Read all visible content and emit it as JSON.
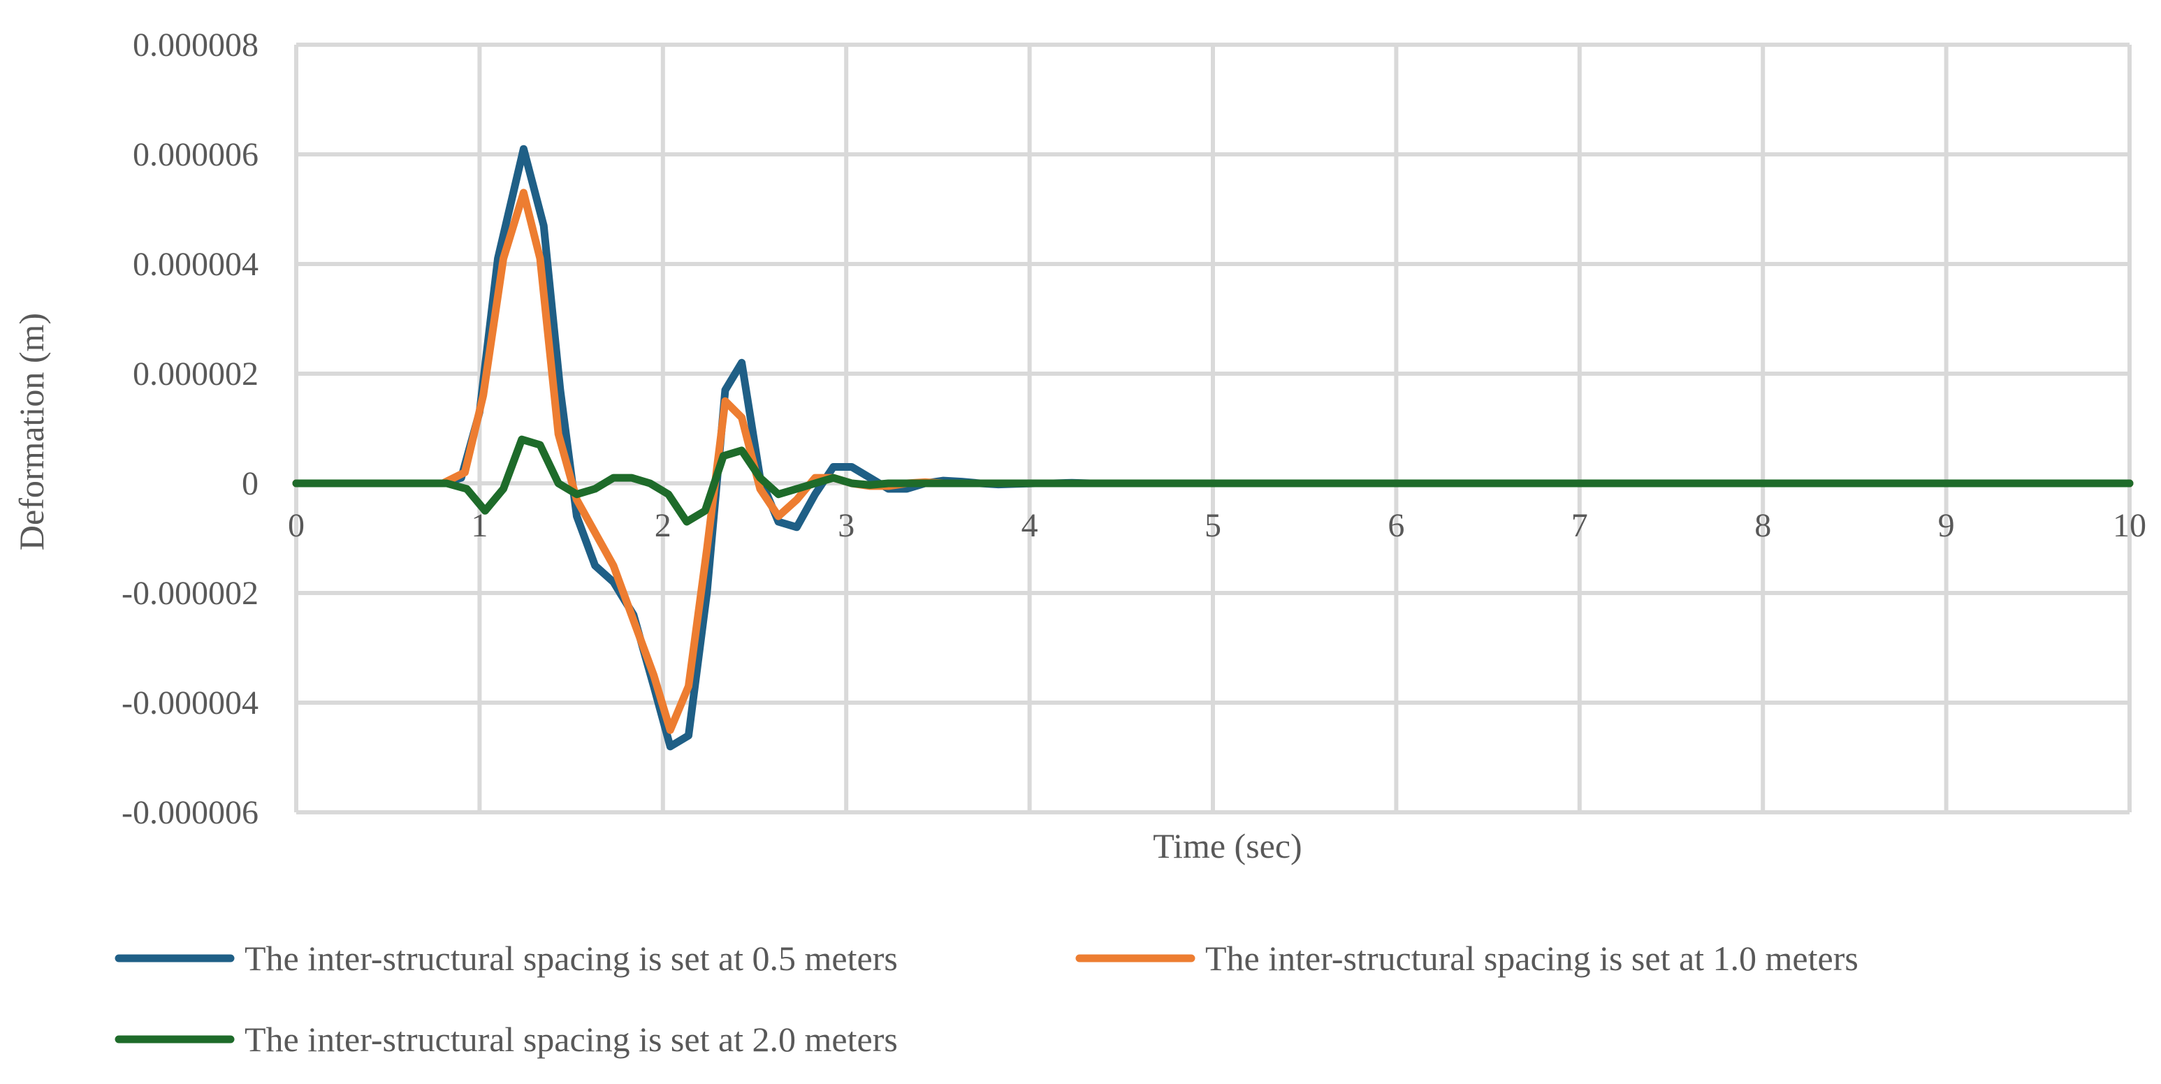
{
  "chart_data": {
    "type": "line",
    "title": "",
    "xlabel": "Time (sec)",
    "ylabel": "Deformation (m)",
    "xlim": [
      0,
      10
    ],
    "ylim": [
      -6e-06,
      8e-06
    ],
    "x_ticks": [
      0,
      1,
      2,
      3,
      4,
      5,
      6,
      7,
      8,
      9,
      10
    ],
    "x_tick_labels": [
      "0",
      "1",
      "2",
      "3",
      "4",
      "5",
      "6",
      "7",
      "8",
      "9",
      "10"
    ],
    "y_ticks": [
      8e-06,
      6e-06,
      4e-06,
      2e-06,
      0,
      -2e-06,
      -4e-06,
      -6e-06
    ],
    "y_tick_labels": [
      "0.000008",
      "0.000006",
      "0.000004",
      "0.000002",
      "0",
      "-0.000002",
      "-0.000004",
      "-0.000006"
    ],
    "grid": true,
    "legend_position": "bottom",
    "colors": {
      "grid": "#d9d9d9",
      "text": "#595959"
    },
    "series": [
      {
        "name": "The inter-structural spacing is set at 0.5 meters",
        "color": "#1f5f86",
        "points": [
          [
            0,
            0
          ],
          [
            0.8,
            0
          ],
          [
            0.9,
            1e-07
          ],
          [
            1.0,
            1.3e-06
          ],
          [
            1.1,
            4.1e-06
          ],
          [
            1.24,
            6.1e-06
          ],
          [
            1.35,
            4.7e-06
          ],
          [
            1.44,
            1.7e-06
          ],
          [
            1.53,
            -6e-07
          ],
          [
            1.63,
            -1.5e-06
          ],
          [
            1.73,
            -1.8e-06
          ],
          [
            1.84,
            -2.4e-06
          ],
          [
            1.95,
            -3.7e-06
          ],
          [
            2.04,
            -4.8e-06
          ],
          [
            2.14,
            -4.6e-06
          ],
          [
            2.24,
            -2e-06
          ],
          [
            2.34,
            1.7e-06
          ],
          [
            2.43,
            2.2e-06
          ],
          [
            2.53,
            1e-07
          ],
          [
            2.63,
            -7e-07
          ],
          [
            2.73,
            -8e-07
          ],
          [
            2.83,
            -2e-07
          ],
          [
            2.93,
            3e-07
          ],
          [
            3.03,
            3e-07
          ],
          [
            3.13,
            1e-07
          ],
          [
            3.23,
            -1e-07
          ],
          [
            3.33,
            -1e-07
          ],
          [
            3.43,
            0
          ],
          [
            3.53,
            5e-08
          ],
          [
            3.63,
            3e-08
          ],
          [
            3.73,
            0
          ],
          [
            3.83,
            -2e-08
          ],
          [
            3.93,
            -1e-08
          ],
          [
            4.03,
            0
          ],
          [
            4.13,
            0
          ],
          [
            4.23,
            1e-08
          ],
          [
            4.33,
            0
          ],
          [
            10,
            0
          ]
        ]
      },
      {
        "name": "The inter-structural spacing is set at 1.0 meters",
        "color": "#ed7d31",
        "points": [
          [
            0,
            0
          ],
          [
            0.8,
            0
          ],
          [
            0.92,
            2e-07
          ],
          [
            1.02,
            1.6e-06
          ],
          [
            1.13,
            4.1e-06
          ],
          [
            1.24,
            5.3e-06
          ],
          [
            1.33,
            4.1e-06
          ],
          [
            1.43,
            9e-07
          ],
          [
            1.53,
            -3e-07
          ],
          [
            1.63,
            -9e-07
          ],
          [
            1.73,
            -1.5e-06
          ],
          [
            1.84,
            -2.5e-06
          ],
          [
            1.95,
            -3.5e-06
          ],
          [
            2.04,
            -4.5e-06
          ],
          [
            2.14,
            -3.7e-06
          ],
          [
            2.24,
            -1.2e-06
          ],
          [
            2.34,
            1.5e-06
          ],
          [
            2.43,
            1.2e-06
          ],
          [
            2.53,
            -1e-07
          ],
          [
            2.63,
            -6e-07
          ],
          [
            2.73,
            -3e-07
          ],
          [
            2.83,
            1e-07
          ],
          [
            2.93,
            1e-07
          ],
          [
            3.03,
            0
          ],
          [
            3.13,
            -5e-08
          ],
          [
            3.23,
            -5e-08
          ],
          [
            3.33,
            0
          ],
          [
            3.43,
            2e-08
          ],
          [
            3.53,
            0
          ],
          [
            10,
            0
          ]
        ]
      },
      {
        "name": "The inter-structural spacing is set at 2.0 meters",
        "color": "#1e6b2a",
        "points": [
          [
            0,
            0
          ],
          [
            0.82,
            0
          ],
          [
            0.93,
            -1e-07
          ],
          [
            1.03,
            -5e-07
          ],
          [
            1.13,
            -1e-07
          ],
          [
            1.23,
            8e-07
          ],
          [
            1.33,
            7e-07
          ],
          [
            1.43,
            0
          ],
          [
            1.53,
            -2e-07
          ],
          [
            1.63,
            -1e-07
          ],
          [
            1.73,
            1e-07
          ],
          [
            1.83,
            1e-07
          ],
          [
            1.93,
            0
          ],
          [
            2.03,
            -2e-07
          ],
          [
            2.13,
            -7e-07
          ],
          [
            2.23,
            -5e-07
          ],
          [
            2.33,
            5e-07
          ],
          [
            2.43,
            6e-07
          ],
          [
            2.53,
            1e-07
          ],
          [
            2.63,
            -2e-07
          ],
          [
            2.73,
            -1e-07
          ],
          [
            2.83,
            0
          ],
          [
            2.93,
            1e-07
          ],
          [
            3.03,
            0
          ],
          [
            3.13,
            -3e-08
          ],
          [
            3.23,
            0
          ],
          [
            10,
            0
          ]
        ]
      }
    ]
  }
}
